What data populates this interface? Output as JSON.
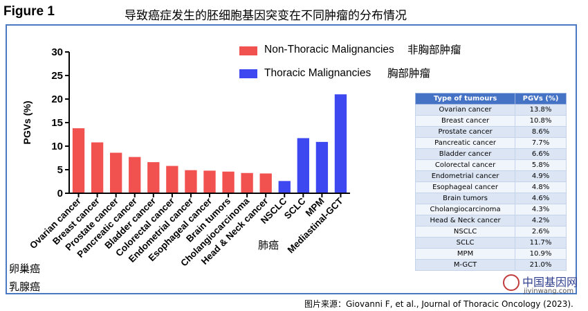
{
  "figure_label": "Figure 1",
  "figure_title": "导致癌症发生的胚细胞基因突变在不同肿瘤的分布情况",
  "chart_data": {
    "type": "bar",
    "categories": [
      "Ovarian cancer",
      "Breast cancer",
      "Prostate cancer",
      "Pancreatic cancer",
      "Bladder cancer",
      "Colorectal cancer",
      "Endometrial cancer",
      "Esophageal cancer",
      "Brain tumors",
      "Cholangiocarcinoma",
      "Head & Neck cancer",
      "NSCLC",
      "SCLC",
      "MPM",
      "Mediastinal-GCT"
    ],
    "values": [
      13.8,
      10.8,
      8.6,
      7.7,
      6.6,
      5.8,
      4.9,
      4.8,
      4.6,
      4.3,
      4.2,
      2.6,
      11.7,
      10.9,
      21.0
    ],
    "groups": [
      "non-thoracic",
      "non-thoracic",
      "non-thoracic",
      "non-thoracic",
      "non-thoracic",
      "non-thoracic",
      "non-thoracic",
      "non-thoracic",
      "non-thoracic",
      "non-thoracic",
      "non-thoracic",
      "thoracic",
      "thoracic",
      "thoracic",
      "thoracic"
    ],
    "ylabel": "PGVs (%)",
    "ylim": [
      0,
      30
    ],
    "yticks": [
      "0",
      "5",
      "10",
      "15",
      "20",
      "25",
      "30"
    ],
    "grid": false,
    "legend_position": "top-right",
    "legend": [
      {
        "name": "Non-Thoracic Malignancies",
        "note": "非胸部肿瘤",
        "color": "#f2524f"
      },
      {
        "name": "Thoracic Malignancies",
        "note": "胸部肿瘤",
        "color": "#3d48f0"
      }
    ]
  },
  "table": {
    "headers": [
      "Type of tumours",
      "PGVs (%)"
    ],
    "rows": [
      [
        "Ovarian cancer",
        "13.8%"
      ],
      [
        "Breast cancer",
        "10.8%"
      ],
      [
        "Prostate cancer",
        "8.6%"
      ],
      [
        "Pancreatic cancer",
        "7.7%"
      ],
      [
        "Bladder cancer",
        "6.6%"
      ],
      [
        "Colorectal cancer",
        "5.8%"
      ],
      [
        "Endometrial cancer",
        "4.9%"
      ],
      [
        "Esophageal cancer",
        "4.8%"
      ],
      [
        "Brain tumors",
        "4.6%"
      ],
      [
        "Cholangiocarcinoma",
        "4.3%"
      ],
      [
        "Head & Neck cancer",
        "4.2%"
      ],
      [
        "NSCLC",
        "2.6%"
      ],
      [
        "SCLC",
        "11.7%"
      ],
      [
        "MPM",
        "10.9%"
      ],
      [
        "M-GCT",
        "21.0%"
      ]
    ]
  },
  "notes": {
    "lung": "肺癌",
    "ovary": "卵巢癌",
    "breast": "乳腺癌"
  },
  "source": "图片来源：Giovanni F, et al., Journal of Thoracic Oncology (2023).",
  "watermark": {
    "name": "中国基因网",
    "url": "jiyinwang.com"
  }
}
